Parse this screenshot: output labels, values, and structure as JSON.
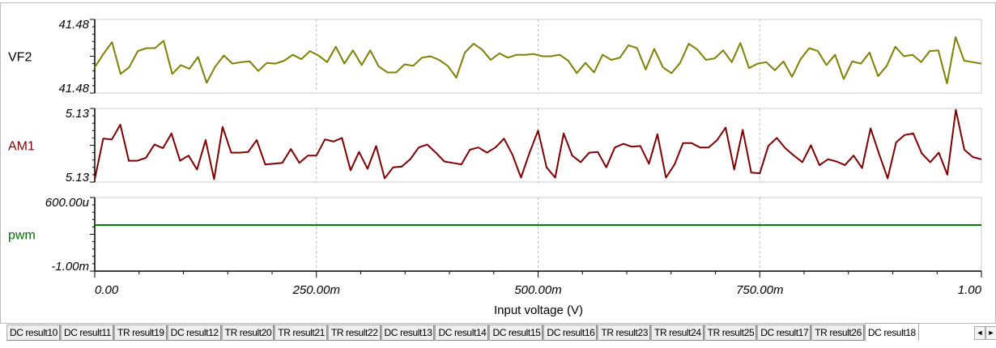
{
  "chart_data": {
    "type": "line",
    "xlabel": "Input voltage (V)",
    "xlim": [
      0,
      1
    ],
    "x_tick_labels": [
      "0.00",
      "250.00m",
      "500.00m",
      "750.00m",
      "1.00"
    ],
    "x_ticks": [
      0,
      0.25,
      0.5,
      0.75,
      1.0
    ],
    "note": "series values are relative levels (0 = axis bottom, 1 = axis top) within each panel",
    "panels": [
      {
        "name": "VF2",
        "color": "#808000",
        "y_top_label": "41.48",
        "y_bottom_label": "41.48",
        "values": [
          0.35,
          0.53,
          0.69,
          0.26,
          0.35,
          0.57,
          0.61,
          0.61,
          0.71,
          0.26,
          0.38,
          0.33,
          0.49,
          0.14,
          0.36,
          0.51,
          0.4,
          0.42,
          0.43,
          0.3,
          0.41,
          0.4,
          0.44,
          0.52,
          0.46,
          0.57,
          0.51,
          0.42,
          0.63,
          0.4,
          0.58,
          0.38,
          0.58,
          0.36,
          0.28,
          0.28,
          0.39,
          0.37,
          0.48,
          0.5,
          0.45,
          0.37,
          0.21,
          0.55,
          0.67,
          0.59,
          0.45,
          0.54,
          0.48,
          0.52,
          0.52,
          0.53,
          0.5,
          0.5,
          0.52,
          0.44,
          0.27,
          0.41,
          0.28,
          0.52,
          0.45,
          0.48,
          0.65,
          0.61,
          0.32,
          0.6,
          0.35,
          0.27,
          0.41,
          0.67,
          0.59,
          0.45,
          0.47,
          0.58,
          0.42,
          0.68,
          0.34,
          0.4,
          0.42,
          0.31,
          0.43,
          0.22,
          0.46,
          0.61,
          0.57,
          0.38,
          0.52,
          0.19,
          0.43,
          0.4,
          0.55,
          0.23,
          0.37,
          0.63,
          0.5,
          0.52,
          0.42,
          0.57,
          0.58,
          0.13,
          0.76,
          0.44,
          0.42,
          0.4
        ]
      },
      {
        "name": "AM1",
        "color": "#800000",
        "y_top_label": "5.13",
        "y_bottom_label": "5.13",
        "values": [
          0.04,
          0.59,
          0.58,
          0.78,
          0.29,
          0.29,
          0.33,
          0.51,
          0.46,
          0.66,
          0.29,
          0.36,
          0.17,
          0.57,
          0.04,
          0.75,
          0.4,
          0.4,
          0.41,
          0.57,
          0.24,
          0.25,
          0.26,
          0.45,
          0.26,
          0.36,
          0.36,
          0.58,
          0.55,
          0.6,
          0.16,
          0.41,
          0.18,
          0.49,
          0.05,
          0.2,
          0.21,
          0.31,
          0.47,
          0.51,
          0.4,
          0.28,
          0.26,
          0.24,
          0.44,
          0.47,
          0.4,
          0.47,
          0.59,
          0.37,
          0.06,
          0.4,
          0.7,
          0.2,
          0.06,
          0.66,
          0.36,
          0.27,
          0.4,
          0.41,
          0.2,
          0.47,
          0.52,
          0.48,
          0.49,
          0.25,
          0.65,
          0.06,
          0.24,
          0.53,
          0.53,
          0.47,
          0.47,
          0.57,
          0.74,
          0.17,
          0.71,
          0.13,
          0.12,
          0.49,
          0.6,
          0.46,
          0.36,
          0.27,
          0.5,
          0.23,
          0.31,
          0.28,
          0.23,
          0.36,
          0.19,
          0.73,
          0.38,
          0.05,
          0.54,
          0.64,
          0.66,
          0.39,
          0.27,
          0.4,
          0.1,
          0.98,
          0.44,
          0.34,
          0.31
        ]
      },
      {
        "name": "pwm",
        "color": "#007000",
        "y_top_label": "600.00u",
        "y_bottom_label": "-1.00m",
        "ylim": [
          -0.001,
          0.0006
        ],
        "constant_value": 0
      }
    ]
  },
  "tabs": [
    "DC result10",
    "DC result11",
    "TR result19",
    "DC result12",
    "TR result20",
    "TR result21",
    "TR result22",
    "DC result13",
    "DC result14",
    "DC result15",
    "DC result16",
    "TR result23",
    "TR result24",
    "TR result25",
    "DC result17",
    "TR result26",
    "DC result18"
  ],
  "active_tab": "DC result18",
  "scroll_left": "◄",
  "scroll_right": "►"
}
